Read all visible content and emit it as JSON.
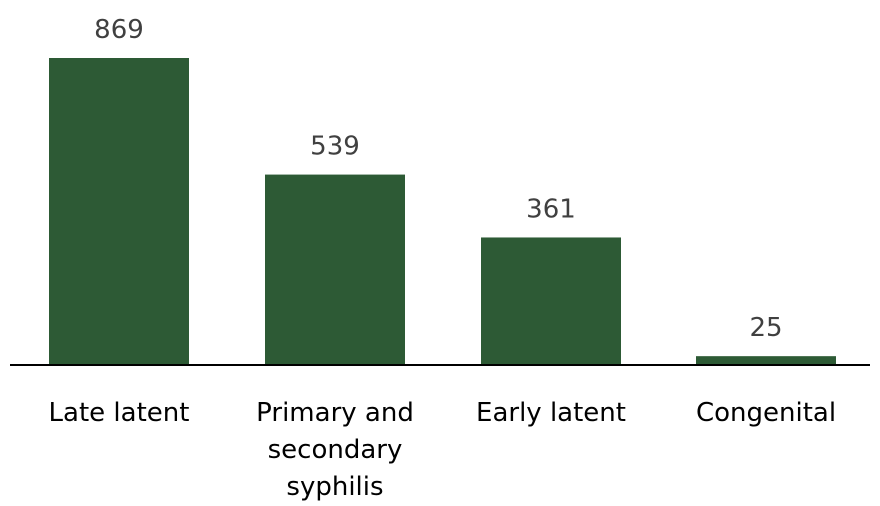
{
  "chart_data": {
    "type": "bar",
    "categories": [
      [
        "Late latent"
      ],
      [
        "Primary and",
        "secondary",
        "syphilis"
      ],
      [
        "Early latent"
      ],
      [
        "Congenital"
      ]
    ],
    "values": [
      869,
      539,
      361,
      25
    ],
    "ylim": [
      0,
      869
    ],
    "grid": false,
    "legend": "none",
    "bar_color": "#2d5a35",
    "axis_color": "#000000"
  }
}
